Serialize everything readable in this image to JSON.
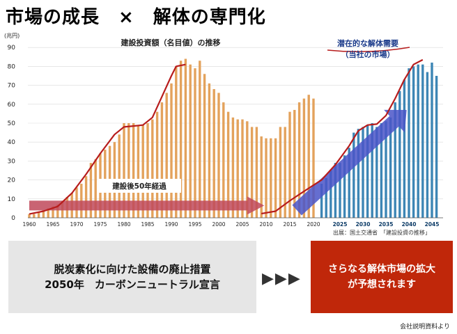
{
  "title": "市場の成長　×　解体の専門化",
  "source": "出展：国土交通省　「建設投資の推移」",
  "footnote": "会社説明資料より",
  "left_box": {
    "line1": "脱炭素化に向けた設備の廃止措置",
    "line2": "2050年　カーボンニュートラル宣言"
  },
  "arrows": "▶▶▶",
  "right_box": {
    "line1": "さらなる解体市場の拡大",
    "line2": "が予想されます"
  },
  "colors": {
    "orange_bar": "#e3a25c",
    "blue_bar": "#3d86b5",
    "curve": "#b71c1c",
    "red_arrow": "#c0495a",
    "blue_arrow": "#4a55c8"
  },
  "chart_data": {
    "type": "bar",
    "title": "建設投資額（名目値）の推移",
    "ylabel": "(兆円)",
    "ylim": [
      0,
      90
    ],
    "yticks": [
      0,
      10,
      20,
      30,
      40,
      50,
      60,
      70,
      80,
      90
    ],
    "xticks_left": [
      "1960",
      "1965",
      "1970",
      "1975",
      "1980",
      "1985",
      "1990",
      "1995",
      "2000",
      "2005",
      "2010",
      "2015",
      "2020"
    ],
    "xticks_right": [
      "2025",
      "2030",
      "2035",
      "2040",
      "2045"
    ],
    "series": [
      {
        "name": "建設投資額（名目値）の推移",
        "x": [
          1960,
          1961,
          1962,
          1963,
          1964,
          1965,
          1966,
          1967,
          1968,
          1969,
          1970,
          1971,
          1972,
          1973,
          1974,
          1975,
          1976,
          1977,
          1978,
          1979,
          1980,
          1981,
          1982,
          1983,
          1984,
          1985,
          1986,
          1987,
          1988,
          1989,
          1990,
          1991,
          1992,
          1993,
          1994,
          1995,
          1996,
          1997,
          1998,
          1999,
          2000,
          2001,
          2002,
          2003,
          2004,
          2005,
          2006,
          2007,
          2008,
          2009,
          2010,
          2011,
          2012,
          2013,
          2014,
          2015,
          2016,
          2017,
          2018,
          2019,
          2020
        ],
        "values": [
          2,
          2,
          3,
          4,
          5,
          6,
          7,
          9,
          11,
          13,
          16,
          18,
          22,
          29,
          31,
          34,
          36,
          38,
          40,
          44,
          50,
          50,
          50,
          49,
          49,
          50,
          52,
          56,
          61,
          66,
          71,
          80,
          83,
          84,
          81,
          79,
          83,
          76,
          71,
          68,
          66,
          61,
          56,
          53,
          52,
          52,
          51,
          48,
          48,
          43,
          42,
          42,
          42,
          48,
          48,
          56,
          57,
          61,
          63,
          65,
          63
        ]
      },
      {
        "name": "潜在的な解体需要（当社の市場）",
        "x": [
          2021,
          2022,
          2023,
          2024,
          2025,
          2026,
          2027,
          2028,
          2029,
          2030,
          2031,
          2032,
          2033,
          2034,
          2035,
          2036,
          2037,
          2038,
          2039,
          2040,
          2041,
          2042,
          2043,
          2044,
          2045,
          2046
        ],
        "values": [
          18,
          21,
          25,
          29,
          29,
          33,
          37,
          45,
          47,
          48,
          49,
          50,
          48,
          50,
          51,
          53,
          61,
          67,
          73,
          79,
          80,
          81,
          81,
          77,
          82,
          75
        ]
      }
    ],
    "annotations": [
      {
        "text": "建設後50年経過"
      },
      {
        "text": "潜在的な解体需要"
      },
      {
        "text": "（当社の市場）"
      }
    ]
  }
}
